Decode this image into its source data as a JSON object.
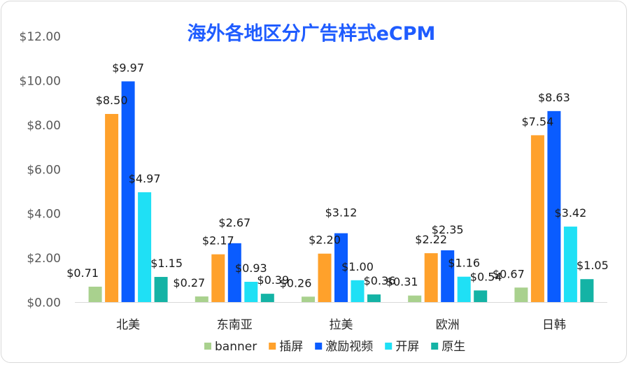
{
  "chart_data": {
    "type": "bar",
    "title": "海外各地区分广告样式eCPM",
    "title_color": "#1f5cff",
    "xlabel": "",
    "ylabel": "",
    "ylim": [
      0,
      12
    ],
    "yticks": [
      "$0.00",
      "$2.00",
      "$4.00",
      "$6.00",
      "$8.00",
      "$10.00",
      "$12.00"
    ],
    "grid": false,
    "legend_position": "bottom",
    "categories": [
      "北美",
      "东南亚",
      "拉美",
      "欧洲",
      "日韩"
    ],
    "series": [
      {
        "name": "banner",
        "color": "#a9d18e",
        "values": [
          0.71,
          0.27,
          0.26,
          0.31,
          0.67
        ],
        "labels": [
          "$0.71",
          "$0.27",
          "$0.26",
          "$0.31",
          "$0.67"
        ]
      },
      {
        "name": "插屏",
        "color": "#ffa12b",
        "values": [
          8.5,
          2.17,
          2.2,
          2.22,
          7.54
        ],
        "labels": [
          "$8.50",
          "$2.17",
          "$2.20",
          "$2.22",
          "$7.54"
        ]
      },
      {
        "name": "激励视频",
        "color": "#0a5cff",
        "values": [
          9.97,
          2.67,
          3.12,
          2.35,
          8.63
        ],
        "labels": [
          "$9.97",
          "$2.67",
          "$3.12",
          "$2.35",
          "$8.63"
        ]
      },
      {
        "name": "开屏",
        "color": "#1fe0f5",
        "values": [
          4.97,
          0.93,
          1.0,
          1.16,
          3.42
        ],
        "labels": [
          "$4.97",
          "$0.93",
          "$1.00",
          "$1.16",
          "$3.42"
        ]
      },
      {
        "name": "原生",
        "color": "#14b3a5",
        "values": [
          1.15,
          0.39,
          0.36,
          0.54,
          1.05
        ],
        "labels": [
          "$1.15",
          "$0.39",
          "$0.36",
          "$0.54",
          "$1.05"
        ]
      }
    ]
  }
}
